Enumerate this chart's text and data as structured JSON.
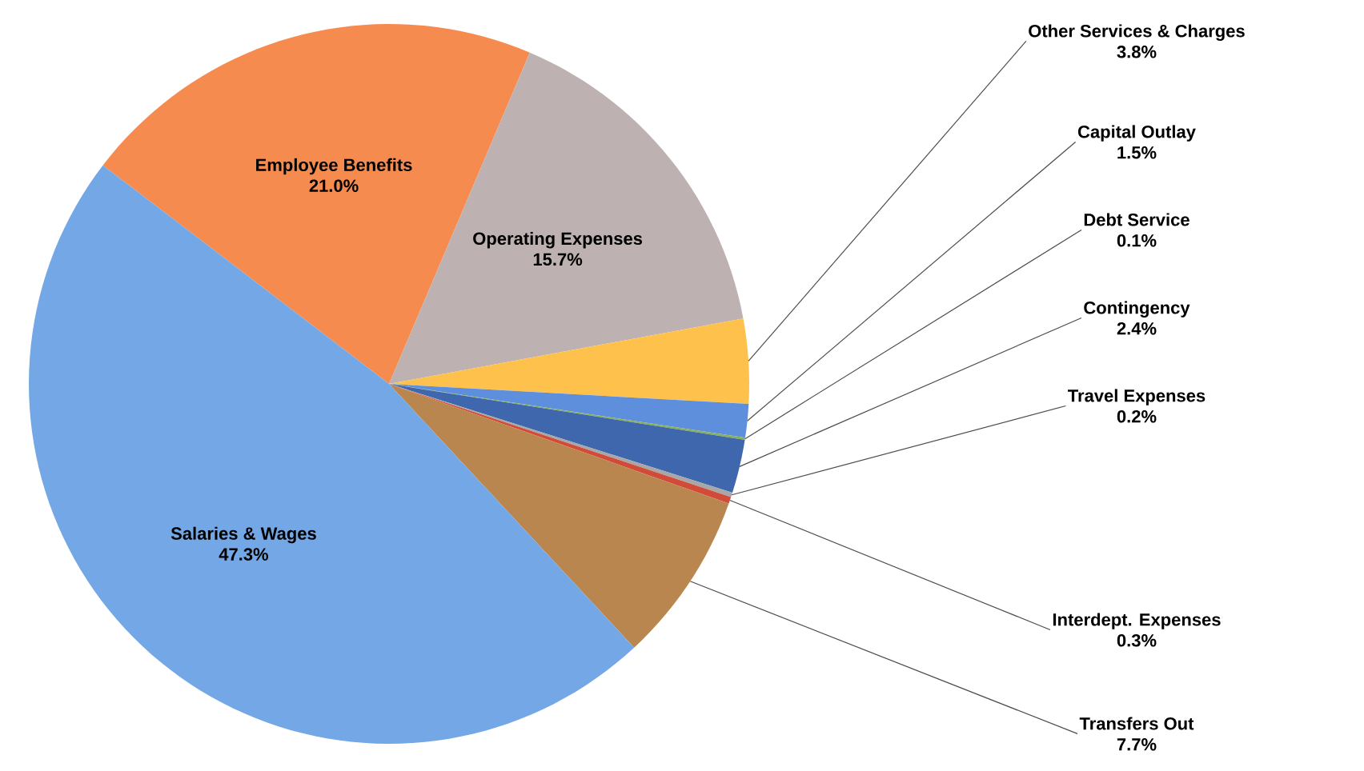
{
  "chart_data": {
    "type": "pie",
    "categories": [
      "Employee Benefits",
      "Operating Expenses",
      "Other Services & Charges",
      "Capital Outlay",
      "Debt Service",
      "Contingency",
      "Travel Expenses",
      "Interdept. Expenses",
      "Transfers Out",
      "Salaries & Wages"
    ],
    "values": [
      21.0,
      15.7,
      3.8,
      1.5,
      0.1,
      2.4,
      0.2,
      0.3,
      7.7,
      47.3
    ],
    "value_labels": [
      "21.0%",
      "15.7%",
      "3.8%",
      "1.5%",
      "0.1%",
      "2.4%",
      "0.2%",
      "0.3%",
      "7.7%",
      "47.3%"
    ],
    "colors": [
      "#f68b50",
      "#bdb1b1",
      "#fec24c",
      "#5e8fdd",
      "#86b157",
      "#3f67ad",
      "#a7a7a7",
      "#d24a38",
      "#b9864f",
      "#74a7e5"
    ]
  }
}
